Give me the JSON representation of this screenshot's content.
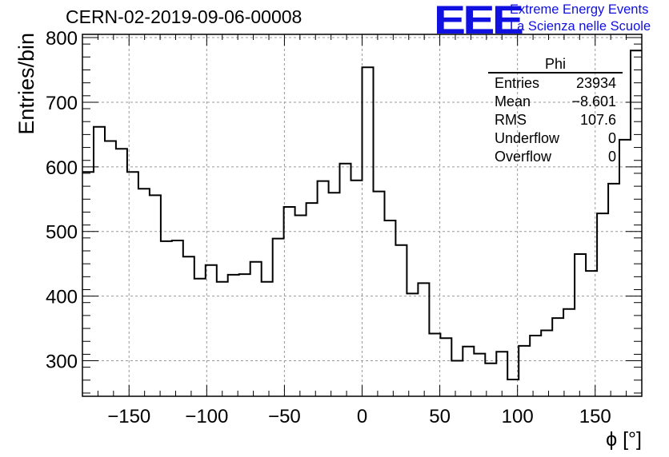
{
  "title": "CERN-02-2019-09-06-00008",
  "logo": {
    "mark": "EEE",
    "line1": "Extreme Energy Events",
    "line2": "La Scienza nelle Scuole",
    "color": "#1010e0"
  },
  "stats": {
    "name": "Phi",
    "rows": [
      {
        "label": "Entries",
        "value": "23934"
      },
      {
        "label": "Mean",
        "value": "−8.601"
      },
      {
        "label": "RMS",
        "value": "107.6"
      },
      {
        "label": "Underflow",
        "value": "0"
      },
      {
        "label": "Overflow",
        "value": "0"
      }
    ]
  },
  "chart_data": {
    "type": "bar",
    "style": "step-histogram",
    "xlabel": "ϕ [°]",
    "ylabel": "Entries/bin",
    "xlim": [
      -180,
      180
    ],
    "ylim": [
      245,
      805
    ],
    "xticks": [
      -150,
      -100,
      -50,
      0,
      50,
      100,
      150
    ],
    "yticks": [
      300,
      400,
      500,
      600,
      700,
      800
    ],
    "grid": true,
    "bin_edges_start": -180,
    "bin_width": 7.2,
    "values": [
      592,
      662,
      640,
      628,
      592,
      566,
      556,
      485,
      486,
      461,
      427,
      448,
      422,
      433,
      434,
      453,
      422,
      489,
      538,
      525,
      544,
      578,
      560,
      605,
      579,
      754,
      562,
      517,
      479,
      404,
      420,
      342,
      335,
      300,
      322,
      311,
      296,
      314,
      271,
      323,
      339,
      347,
      366,
      380,
      465,
      439,
      528,
      574,
      642,
      780
    ]
  }
}
